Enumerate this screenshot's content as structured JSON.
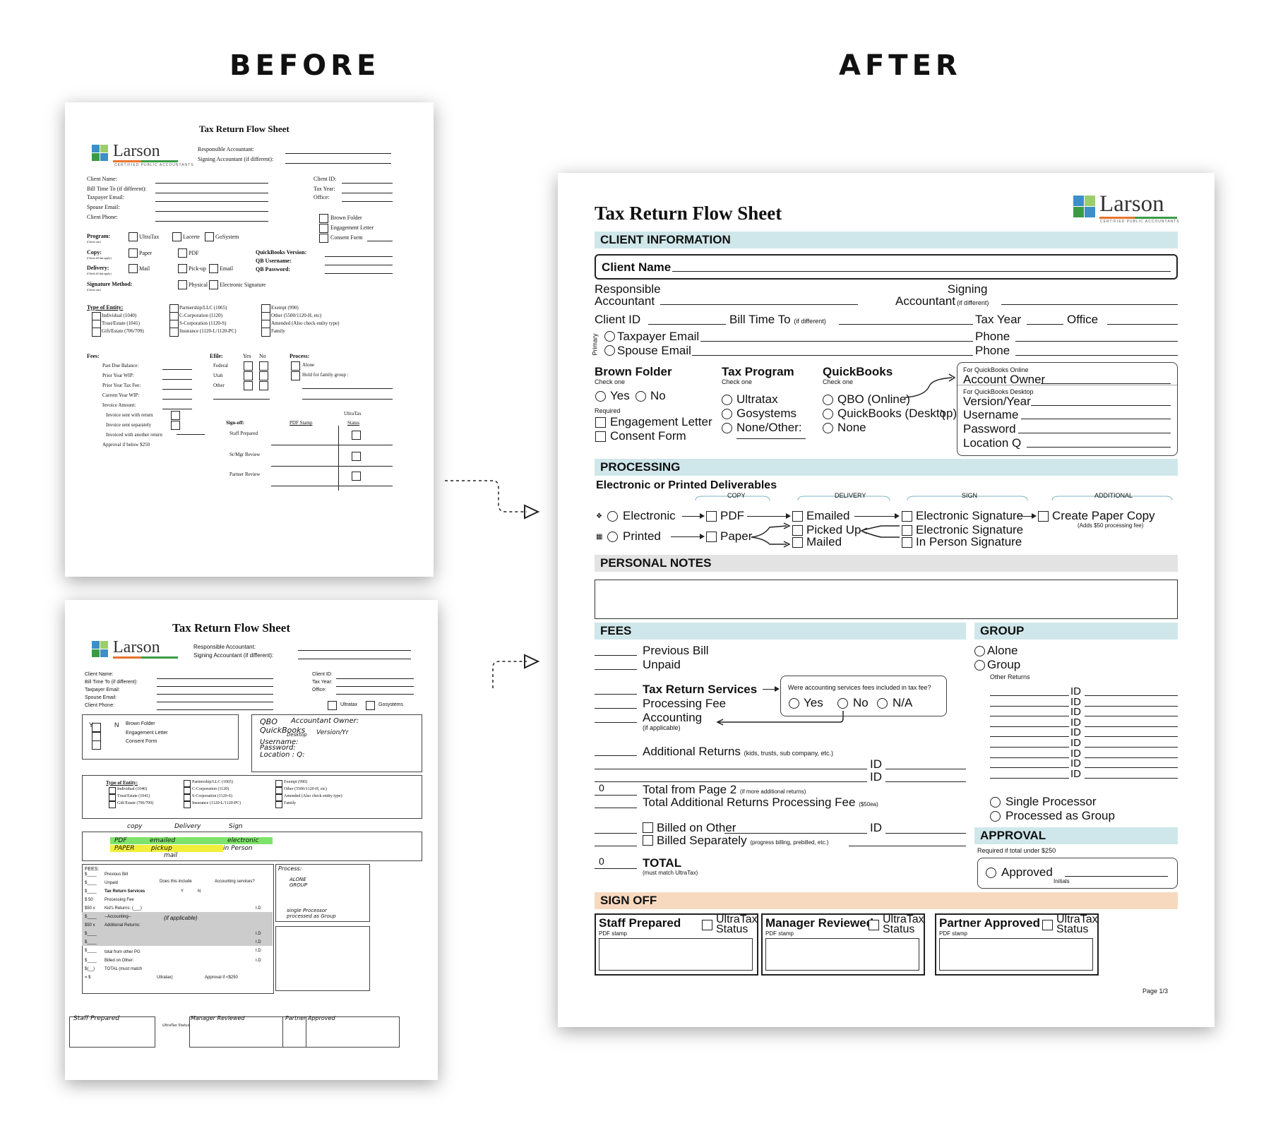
{
  "headers": {
    "before": "BEFORE",
    "after": "AFTER"
  },
  "colors": {
    "teal_bar": "#cfe7ea",
    "grey_bar": "#e3e3e3",
    "peach_bar": "#f7d9bf",
    "logo_green": "#3c9a47",
    "logo_orange": "#e9742b",
    "logo_blue": "#3c8fc8"
  },
  "logo": {
    "name": "Larson",
    "tagline": "CERTIFIED PUBLIC ACCOUNTANTS"
  },
  "before1": {
    "title": "Tax Return Flow Sheet",
    "responsible": "Responsible Accountant:",
    "signing": "Signing Accountant (if different):",
    "left_fields": [
      "Client Name:",
      "Bill Time To (if different):",
      "Taxpayer Email:",
      "Spouse Email:",
      "Client Phone:"
    ],
    "right_fields": [
      "Client ID:",
      "Tax Year:",
      "Office:"
    ],
    "folder_checks": [
      "Brown Folder",
      "Engagement Letter",
      "Consent Form"
    ],
    "program": {
      "label": "Program:",
      "sub": "(Check one)",
      "opts": [
        "UltraTax",
        "Lacerte",
        "GoSystem"
      ]
    },
    "copy": {
      "label": "Copy:",
      "sub": "(Check all that apply)",
      "opts": [
        "Paper",
        "PDF"
      ]
    },
    "delivery": {
      "label": "Delivery:",
      "sub": "(Check all that apply)",
      "opts": [
        "Mail",
        "Pick-up",
        "Email"
      ]
    },
    "signature": {
      "label": "Signature Method:",
      "sub": "(Check one)",
      "opts": [
        "Physical",
        "Electronic Signature"
      ]
    },
    "qb": [
      "QuickBooks Version:",
      "QB Username:",
      "QB Password:"
    ],
    "entity_label": "Type of Entity:",
    "entity_col1": [
      "Individual (1040)",
      "Trust/Estate (1041)",
      "Gift/Estate (706/709)"
    ],
    "entity_col2": [
      "Partnership/LLC (1065)",
      "C-Corporation (1120)",
      "S-Corporation (1120-S)",
      "Insurance (1120-L/1120-PC)"
    ],
    "entity_col3": [
      "Exempt (990)",
      "Other (5500/1120-H, etc)",
      "Amended (Also check entity type)",
      "Family"
    ],
    "fees_label": "Fees:",
    "fees": [
      "Past Due Balance:",
      "Prior Year WIP:",
      "Prior Year Tax Fee:",
      "Current Year WIP:",
      "Invoice Amount:"
    ],
    "invoice": [
      "Invoice sent with return",
      "Invoice sent separately",
      "Invoiced with another return",
      "Approval if below $250"
    ],
    "efile": {
      "label": "Efile:",
      "yes": "Yes",
      "no": "No",
      "rows": [
        "Federal",
        "Utah",
        "Other"
      ]
    },
    "process": {
      "label": "Process:",
      "opts": [
        "Alone",
        "Hold for family group :"
      ]
    },
    "signoff": {
      "label": "Sign-off:",
      "pdf": "PDF Stamp",
      "ultratax": "UltraTax",
      "status": "Status",
      "rows": [
        "Staff Prepared",
        "Sr/Mgr Review",
        "Partner Review"
      ]
    }
  },
  "before2": {
    "title": "Tax Return Flow Sheet",
    "responsible": "Responsible Accountant:",
    "signing": "Signing Accountant (if different):",
    "left_fields": [
      "Client Name:",
      "Bill Time To (if different):",
      "Taxpayer Email:",
      "Spouse Email:",
      "Client Phone:"
    ],
    "right_fields": [
      "Client ID:",
      "Tax Year:",
      "Office:"
    ],
    "programs": [
      "Ultratax",
      "Gosystems"
    ],
    "folder": [
      "Brown Folder",
      "Engagement Letter",
      "Consent Form"
    ],
    "yn": {
      "y": "Y",
      "n": "N"
    },
    "hand_qb": [
      "QBO",
      "Accountant Owner:",
      "QuickBooks",
      "Desktop",
      "Version/Yr",
      "Username:",
      "Password:",
      "Location : Q:"
    ],
    "entity_label": "Type of Entity:",
    "entity_col1": [
      "Individual (1040)",
      "Trust/Estate (1041)",
      "Gift/Estate (706/709)"
    ],
    "entity_col2": [
      "Partnership/LLC (1065)",
      "C-Corporation (1120)",
      "S-Corporation (1120-S)",
      "Insurance (1120-L/1120-PC)"
    ],
    "entity_col3": [
      "Exempt (990)",
      "Other (5500/1120-H, etc)",
      "Amended (Also check entity type)",
      "Family"
    ],
    "hand_deliv": [
      "copy",
      "Delivery",
      "Sign",
      "PDF",
      "emailed",
      "electronic",
      "PAPER",
      "pickup",
      "in Person",
      "mail"
    ],
    "fees_label": "FEES:",
    "fees": [
      "Previous Bill",
      "Unpaid",
      "Tax Return Services",
      "Processing Fee",
      "Kid's Returns: (___)",
      "--Accounting--",
      "Additional Returns:",
      "total from other PG",
      "Billed on Other:",
      "TOTAL (must match"
    ],
    "fee_amounts": [
      "$____",
      "$____",
      "$____",
      "$ 50",
      "$50 x",
      "$____",
      "$50 x",
      "$____",
      "$____",
      "$____",
      "$____",
      "$(__)",
      "= $"
    ],
    "does_include": "Does this include",
    "accounting_q": "Accounting services?",
    "yn_small": [
      "Y",
      "N"
    ],
    "if_applicable": "(if applicable)",
    "id": "I.D",
    "ultratax": "Ultratax)",
    "approval": "Approval if <$250",
    "process_hand": [
      "Process:",
      "ALONE",
      "GROUP",
      "single Processor",
      "processed as Group"
    ],
    "signoff_hand": [
      "Staff Prepared",
      "UltraTax Status",
      "Manager Reviewed",
      "Partner Approved"
    ]
  },
  "after": {
    "title": "Tax Return Flow Sheet",
    "sec_client": "CLIENT INFORMATION",
    "client_name": "Client Name",
    "responsible": [
      "Responsible",
      "Accountant"
    ],
    "signing": [
      "Signing",
      "Accountant"
    ],
    "if_different": "(if different)",
    "client_id": "Client ID",
    "bill_time": "Bill Time To",
    "tax_year": "Tax Year",
    "office": "Office",
    "primary": "Primary",
    "taxpayer_email": "Taxpayer Email",
    "spouse_email": "Spouse Email",
    "phone": "Phone",
    "brown_folder": {
      "title": "Brown Folder",
      "sub": "Check one",
      "yes": "Yes",
      "no": "No",
      "required": "Required",
      "items": [
        "Engagement Letter",
        "Consent Form"
      ]
    },
    "tax_program": {
      "title": "Tax Program",
      "sub": "Check one",
      "items": [
        "Ultratax",
        "Gosystems",
        "None/Other:"
      ]
    },
    "quickbooks": {
      "title": "QuickBooks",
      "sub": "Check one",
      "items": [
        "QBO (Online)",
        "QuickBooks (Desktop)",
        "None"
      ]
    },
    "qb_online": {
      "sub": "For QuickBooks Online",
      "field": "Account Owner"
    },
    "qb_desktop": {
      "sub": "For QuickBooks Desktop",
      "fields": [
        "Version/Year",
        "Username",
        "Password",
        "Location Q"
      ]
    },
    "sec_processing": "PROCESSING",
    "deliverables": "Electronic or Printed Deliverables",
    "col_heads": [
      "COPY",
      "DELIVERY",
      "SIGN",
      "ADDITIONAL"
    ],
    "electronic": "Electronic",
    "printed": "Printed",
    "pdf": "PDF",
    "paper": "Paper",
    "emailed": "Emailed",
    "picked_up": "Picked Up",
    "mailed": "Mailed",
    "esig": "Electronic Signature",
    "inperson": "In Person Signature",
    "create_paper": "Create Paper Copy",
    "create_paper_sub": "(Adds $50 processing fee)",
    "sec_notes": "PERSONAL NOTES",
    "sec_fees": "FEES",
    "fees": {
      "previous_bill": "Previous Bill",
      "unpaid": "Unpaid",
      "trs": "Tax Return Services",
      "processing": "Processing Fee",
      "accounting": "Accounting",
      "if_applicable": "(if applicable)",
      "question": "Were accounting services fees included in tax fee?",
      "yes": "Yes",
      "no": "No",
      "na": "N/A",
      "additional": "Additional Returns",
      "additional_sub": "(kids, trusts, sub company, etc.)",
      "id": "ID",
      "zero1": "0",
      "total_page2": "Total from Page 2",
      "total_page2_sub": "(if more additional returns)",
      "total_additional": "Total Additional Returns Processing Fee",
      "total_additional_sub": "($50ea)",
      "billed_other": "Billed on Other",
      "billed_sep": "Billed Separately",
      "billed_sep_sub": "(progress billing, prebilled, etc.)",
      "zero2": "0",
      "total": "TOTAL",
      "total_sub": "(must match UltraTax)"
    },
    "sec_group": "GROUP",
    "group": {
      "alone": "Alone",
      "group": "Group",
      "other_returns": "Other Returns",
      "id": "ID",
      "single": "Single Processor",
      "processed_group": "Processed as Group"
    },
    "sec_approval": "APPROVAL",
    "approval": {
      "sub": "Required if total under $250",
      "approved": "Approved",
      "initials": "Initials"
    },
    "sec_signoff": "SIGN OFF",
    "signoff": [
      {
        "title": "Staff Prepared",
        "stamp": "PDF stamp",
        "ultra": "UltraTax",
        "status": "Status"
      },
      {
        "title": "Manager Reviewed",
        "stamp": "PDF stamp",
        "ultra": "UltraTax",
        "status": "Status"
      },
      {
        "title": "Partner Approved",
        "stamp": "PDF stamp",
        "ultra": "UltraTax",
        "status": "Status"
      }
    ],
    "page": "Page 1/3"
  }
}
